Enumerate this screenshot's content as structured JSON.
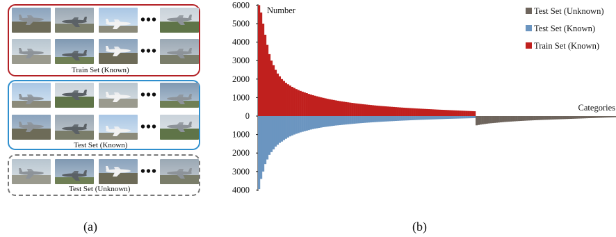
{
  "panel_a": {
    "groups": [
      {
        "label": "Train Set (Known)",
        "style": "solid",
        "color": "#b32025"
      },
      {
        "label": "Test Set (Known)",
        "style": "solid",
        "color": "#2f8fce"
      },
      {
        "label": "Test Set (Unknown)",
        "style": "dashed",
        "color": "#777777"
      }
    ],
    "ellipsis": "•••",
    "subfigure_label": "(a)"
  },
  "panel_b": {
    "subfigure_label": "(b)"
  },
  "chart_data": {
    "type": "bar",
    "annotations": {
      "y_axis": "Number",
      "x_axis": "Categories"
    },
    "y_ticks_upper": [
      6000,
      5000,
      4000,
      3000,
      2000,
      1000,
      0
    ],
    "y_ticks_lower": [
      1000,
      2000,
      3000,
      4000
    ],
    "ylim": [
      -4000,
      6000
    ],
    "grid": false,
    "legend_placement": "top-right",
    "categories_known": 105,
    "categories_unknown": 70,
    "series": [
      {
        "name": "Test Set (Unknown)",
        "color": "#6e655d",
        "direction": "down",
        "values": [
          500,
          480,
          460,
          445,
          430,
          415,
          400,
          390,
          380,
          370,
          360,
          350,
          340,
          330,
          320,
          312,
          305,
          298,
          290,
          283,
          276,
          270,
          264,
          258,
          252,
          246,
          240,
          235,
          230,
          225,
          220,
          215,
          210,
          206,
          202,
          198,
          194,
          190,
          186,
          182,
          178,
          174,
          170,
          166,
          162,
          158,
          154,
          150,
          146,
          142,
          138,
          134,
          130,
          126,
          122,
          118,
          114,
          110,
          106,
          102,
          98,
          94,
          90,
          86,
          82,
          78,
          74,
          70,
          66,
          62
        ]
      },
      {
        "name": "Test Set (Known)",
        "color": "#6b95c0",
        "direction": "down",
        "values": [
          3950,
          3400,
          3000,
          2600,
          2350,
          2100,
          1950,
          1800,
          1650,
          1550,
          1450,
          1380,
          1300,
          1230,
          1160,
          1100,
          1050,
          1000,
          960,
          920,
          880,
          850,
          820,
          790,
          760,
          730,
          705,
          680,
          660,
          640,
          620,
          600,
          585,
          570,
          555,
          540,
          525,
          510,
          500,
          490,
          478,
          466,
          455,
          444,
          433,
          422,
          412,
          402,
          393,
          384,
          375,
          366,
          358,
          350,
          342,
          335,
          328,
          321,
          314,
          307,
          300,
          294,
          288,
          282,
          276,
          270,
          264,
          258,
          252,
          247,
          242,
          237,
          232,
          227,
          222,
          217,
          212,
          207,
          203,
          199,
          195,
          191,
          187,
          183,
          179,
          175,
          171,
          167,
          163,
          159,
          155,
          151,
          148,
          145,
          142,
          139,
          136,
          133,
          130,
          127,
          124,
          121,
          118,
          115,
          112
        ]
      },
      {
        "name": "Train Set (Known)",
        "color": "#c0201e",
        "direction": "up",
        "values": [
          6000,
          5600,
          5000,
          4400,
          3850,
          3350,
          3000,
          2750,
          2500,
          2300,
          2150,
          2000,
          1900,
          1800,
          1720,
          1650,
          1580,
          1520,
          1460,
          1410,
          1360,
          1320,
          1280,
          1240,
          1200,
          1165,
          1130,
          1100,
          1070,
          1040,
          1010,
          985,
          960,
          935,
          910,
          890,
          870,
          850,
          830,
          810,
          792,
          775,
          758,
          742,
          727,
          712,
          698,
          684,
          670,
          657,
          644,
          632,
          620,
          608,
          597,
          586,
          575,
          565,
          555,
          545,
          536,
          527,
          518,
          509,
          500,
          492,
          484,
          476,
          468,
          460,
          453,
          446,
          439,
          432,
          425,
          418,
          411,
          405,
          399,
          393,
          387,
          381,
          375,
          369,
          363,
          357,
          351,
          346,
          341,
          336,
          331,
          326,
          321,
          316,
          311,
          306,
          301,
          296,
          291,
          286,
          281,
          276,
          271,
          266,
          261
        ]
      }
    ]
  }
}
